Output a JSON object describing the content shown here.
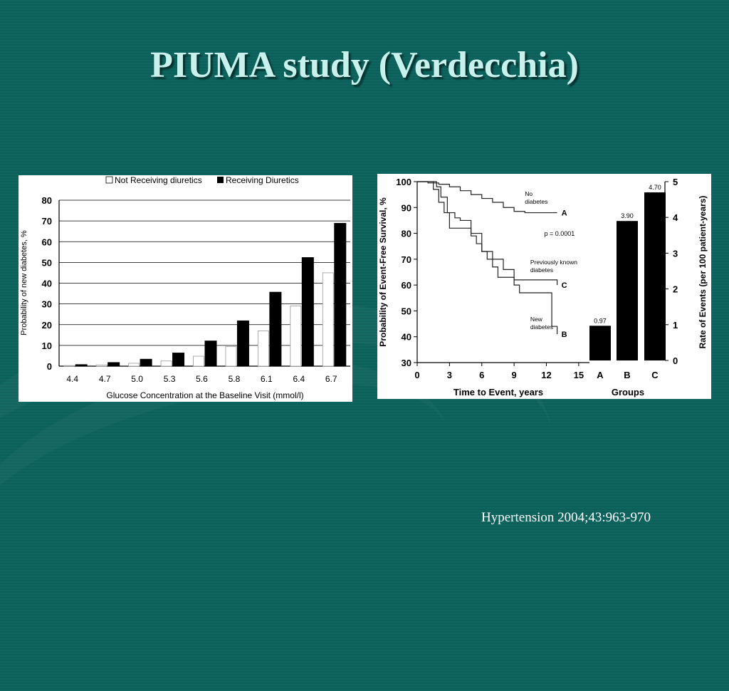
{
  "title": "PIUMA study (Verdecchia)",
  "citation": "Hypertension 2004;43:963-970",
  "colors": {
    "background": "#0f6660",
    "title": "#c8f0ec",
    "bar_dark": "#000000",
    "bar_light": "#ffffff"
  },
  "chart_data": [
    {
      "type": "bar",
      "categories": [
        "4.4",
        "4.7",
        "5.0",
        "5.3",
        "5.6",
        "5.8",
        "6.1",
        "6.4",
        "6.7"
      ],
      "series": [
        {
          "name": "Not Receiving diuretics",
          "values": [
            0.3,
            0.6,
            1.4,
            2.5,
            4.8,
            9.5,
            17,
            29,
            45
          ]
        },
        {
          "name": "Receiving Diuretics",
          "values": [
            0.9,
            1.9,
            3.5,
            6.5,
            12.3,
            22,
            35.8,
            52.5,
            69
          ]
        }
      ],
      "xlabel": "Glucose Concentration at the Baseline Visit (mmol/l)",
      "ylabel": "Probability of new diabetes, %",
      "ylim": [
        0,
        80
      ],
      "yticks": [
        0,
        10,
        20,
        30,
        40,
        50,
        60,
        70,
        80
      ],
      "grid": true,
      "legend": "top"
    },
    {
      "type": "line",
      "xlabel": "Time to Event, years",
      "ylabel": "Probability of Event-Free Survival, %",
      "xlim": [
        0,
        16
      ],
      "ylim": [
        30,
        100
      ],
      "xticks": [
        0,
        3,
        6,
        9,
        12,
        15
      ],
      "yticks": [
        30,
        40,
        50,
        60,
        70,
        80,
        90,
        100
      ],
      "series": [
        {
          "name": "No diabetes",
          "label": "A",
          "x": [
            0,
            1,
            2,
            3,
            4,
            5,
            6,
            7,
            8,
            9,
            10,
            12,
            13
          ],
          "y": [
            100,
            99.5,
            99,
            98,
            96.5,
            95,
            93.5,
            92,
            90,
            88.5,
            88,
            88,
            88
          ]
        },
        {
          "name": "Previously known diabetes",
          "label": "C",
          "x": [
            0,
            1.8,
            2.2,
            2.8,
            3.5,
            4,
            5,
            6,
            7,
            8,
            9,
            10,
            13
          ],
          "y": [
            100,
            98,
            94,
            88,
            86,
            85,
            80,
            73,
            70,
            66,
            62,
            62,
            60
          ]
        },
        {
          "name": "New diabetes",
          "label": "B",
          "x": [
            0,
            1.5,
            2,
            2.5,
            3,
            4,
            5,
            5.5,
            6,
            6.5,
            7,
            7.5,
            9,
            9.5,
            11,
            12.5,
            13
          ],
          "y": [
            100,
            97,
            92,
            88,
            82,
            82,
            79,
            76,
            73,
            70,
            67,
            63,
            60,
            57,
            57,
            44,
            41
          ]
        }
      ],
      "annotation": "p = 0.0001",
      "labels": {
        "A": [
          "No",
          "diabetes"
        ],
        "C": [
          "Previously known",
          "diabetes"
        ],
        "B": [
          "New",
          "diabetes"
        ]
      }
    },
    {
      "type": "bar",
      "xlabel": "Groups",
      "ylabel": "Rate of Events (per 100 patient-years)",
      "categories": [
        "A",
        "B",
        "C"
      ],
      "values": [
        0.97,
        3.9,
        4.7
      ],
      "value_labels": [
        "0.97",
        "3.90",
        "4.70"
      ],
      "ylim": [
        0,
        5
      ],
      "yticks": [
        0,
        1,
        2,
        3,
        4,
        5
      ]
    }
  ]
}
